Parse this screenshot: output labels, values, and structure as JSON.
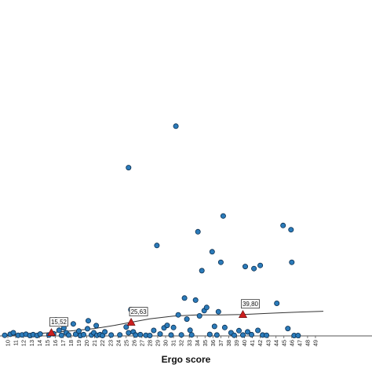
{
  "chart_data": {
    "type": "scatter",
    "title": "",
    "xlabel": "Ergo score",
    "ylabel": "",
    "x_ticks": [
      10,
      11,
      12,
      13,
      14,
      15,
      16,
      17,
      18,
      19,
      20,
      21,
      22,
      23,
      24,
      25,
      26,
      27,
      28,
      29,
      30,
      31,
      32,
      33,
      34,
      35,
      36,
      37,
      38,
      39,
      40,
      41,
      42,
      43,
      44,
      45,
      46,
      47,
      48,
      49
    ],
    "xlim": [
      9,
      50
    ],
    "ylim": [
      0,
      100
    ],
    "grid": false,
    "legend": "none",
    "colors": {
      "point_fill": "#2b7bba",
      "point_stroke": "#0b2e4f",
      "line": "#333333",
      "marker": "#cc1f1f"
    },
    "points": [
      {
        "x": 9.6,
        "y": 0.3
      },
      {
        "x": 10.3,
        "y": 0.8
      },
      {
        "x": 10.7,
        "y": 1.5
      },
      {
        "x": 11.3,
        "y": 0.3
      },
      {
        "x": 11.8,
        "y": 0.5
      },
      {
        "x": 12.3,
        "y": 0.8
      },
      {
        "x": 12.8,
        "y": 0.2
      },
      {
        "x": 13.2,
        "y": 0.6
      },
      {
        "x": 13.7,
        "y": 0.2
      },
      {
        "x": 14.1,
        "y": 0.9
      },
      {
        "x": 15.2,
        "y": 0.4
      },
      {
        "x": 15.8,
        "y": 1.0
      },
      {
        "x": 16.1,
        "y": 7.6
      },
      {
        "x": 16.5,
        "y": 2.7
      },
      {
        "x": 16.8,
        "y": 0.3
      },
      {
        "x": 17.1,
        "y": 3.8
      },
      {
        "x": 17.4,
        "y": 1.5
      },
      {
        "x": 17.7,
        "y": 0.4
      },
      {
        "x": 18.3,
        "y": 5.7
      },
      {
        "x": 18.6,
        "y": 0.8
      },
      {
        "x": 19.0,
        "y": 2.3
      },
      {
        "x": 19.2,
        "y": 0.2
      },
      {
        "x": 19.6,
        "y": 0.6
      },
      {
        "x": 20.1,
        "y": 3.4
      },
      {
        "x": 20.2,
        "y": 7.2
      },
      {
        "x": 20.6,
        "y": 0.4
      },
      {
        "x": 20.9,
        "y": 1.5
      },
      {
        "x": 21.3,
        "y": 0.3
      },
      {
        "x": 21.2,
        "y": 4.9
      },
      {
        "x": 21.7,
        "y": 0.6
      },
      {
        "x": 22.0,
        "y": 0.2
      },
      {
        "x": 22.3,
        "y": 1.9
      },
      {
        "x": 23.1,
        "y": 0.4
      },
      {
        "x": 24.2,
        "y": 0.5
      },
      {
        "x": 25.0,
        "y": 4.2
      },
      {
        "x": 25.3,
        "y": 1.5
      },
      {
        "x": 25.6,
        "y": 12.5
      },
      {
        "x": 25.3,
        "y": 80.0
      },
      {
        "x": 25.9,
        "y": 1.9
      },
      {
        "x": 26.2,
        "y": 0.4
      },
      {
        "x": 26.8,
        "y": 0.6
      },
      {
        "x": 27.5,
        "y": 0.3
      },
      {
        "x": 28.0,
        "y": 0.2
      },
      {
        "x": 28.5,
        "y": 2.6
      },
      {
        "x": 28.9,
        "y": 43.0
      },
      {
        "x": 29.3,
        "y": 0.9
      },
      {
        "x": 29.8,
        "y": 3.8
      },
      {
        "x": 30.2,
        "y": 5.0
      },
      {
        "x": 30.7,
        "y": 0.4
      },
      {
        "x": 31.0,
        "y": 4.0
      },
      {
        "x": 31.3,
        "y": 99.7
      },
      {
        "x": 31.6,
        "y": 10.0
      },
      {
        "x": 32.0,
        "y": 0.5
      },
      {
        "x": 32.4,
        "y": 18.0
      },
      {
        "x": 32.7,
        "y": 8.0
      },
      {
        "x": 33.1,
        "y": 2.7
      },
      {
        "x": 33.3,
        "y": 0.5
      },
      {
        "x": 33.8,
        "y": 17.0
      },
      {
        "x": 34.1,
        "y": 49.5
      },
      {
        "x": 34.3,
        "y": 9.5
      },
      {
        "x": 34.6,
        "y": 31.0
      },
      {
        "x": 34.9,
        "y": 12.0
      },
      {
        "x": 35.2,
        "y": 13.5
      },
      {
        "x": 35.6,
        "y": 0.7
      },
      {
        "x": 35.9,
        "y": 40.0
      },
      {
        "x": 36.2,
        "y": 4.5
      },
      {
        "x": 36.5,
        "y": 0.4
      },
      {
        "x": 36.7,
        "y": 11.5
      },
      {
        "x": 37.0,
        "y": 35.0
      },
      {
        "x": 37.3,
        "y": 57.0
      },
      {
        "x": 37.5,
        "y": 4.0
      },
      {
        "x": 38.3,
        "y": 1.5
      },
      {
        "x": 38.7,
        "y": 0.3
      },
      {
        "x": 39.3,
        "y": 2.5
      },
      {
        "x": 39.8,
        "y": 0.4
      },
      {
        "x": 40.1,
        "y": 33.0
      },
      {
        "x": 40.4,
        "y": 1.9
      },
      {
        "x": 40.9,
        "y": 0.6
      },
      {
        "x": 41.2,
        "y": 32.0
      },
      {
        "x": 41.7,
        "y": 2.6
      },
      {
        "x": 42.0,
        "y": 33.5
      },
      {
        "x": 42.3,
        "y": 0.4
      },
      {
        "x": 42.8,
        "y": 0.3
      },
      {
        "x": 44.1,
        "y": 15.5
      },
      {
        "x": 44.9,
        "y": 52.5
      },
      {
        "x": 45.5,
        "y": 3.5
      },
      {
        "x": 45.9,
        "y": 50.5
      },
      {
        "x": 46.0,
        "y": 35.0
      },
      {
        "x": 46.3,
        "y": 0.2
      },
      {
        "x": 46.8,
        "y": 0.2
      }
    ],
    "trend_line": [
      {
        "x": 9.5,
        "y": 0.2
      },
      {
        "x": 12,
        "y": 0.6
      },
      {
        "x": 15.52,
        "y": 1.6
      },
      {
        "x": 18,
        "y": 2.4
      },
      {
        "x": 21,
        "y": 3.5
      },
      {
        "x": 23.5,
        "y": 5.0
      },
      {
        "x": 25.63,
        "y": 6.5
      },
      {
        "x": 28,
        "y": 8.1
      },
      {
        "x": 31,
        "y": 9.4
      },
      {
        "x": 34,
        "y": 10.0
      },
      {
        "x": 37,
        "y": 10.0
      },
      {
        "x": 39.8,
        "y": 10.2
      },
      {
        "x": 43,
        "y": 10.7
      },
      {
        "x": 46,
        "y": 11.2
      },
      {
        "x": 50,
        "y": 11.7
      }
    ],
    "annotations": [
      {
        "label": "15,52",
        "x": 15.52,
        "y": 1.6
      },
      {
        "label": "25,63",
        "x": 25.63,
        "y": 6.5
      },
      {
        "label": "39,80",
        "x": 39.8,
        "y": 10.2
      }
    ]
  }
}
